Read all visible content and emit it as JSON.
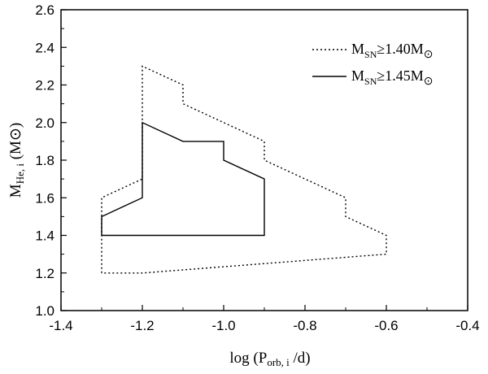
{
  "chart_data": {
    "type": "line",
    "xlabel": {
      "prefix": "log (P",
      "sub": "orb, i",
      "suffix": " /d)"
    },
    "ylabel": {
      "prefix": "M",
      "sub": "He, i",
      "suffix": " (M",
      "sun": "⊙",
      "close": ")"
    },
    "xlim": [
      -1.4,
      -0.4
    ],
    "ylim": [
      1.0,
      2.6
    ],
    "xticks": [
      -1.4,
      -1.2,
      -1.0,
      -0.8,
      -0.6,
      -0.4
    ],
    "xtick_labels": [
      "-1.4",
      "-1.2",
      "-1.0",
      "-0.8",
      "-0.6",
      "-0.4"
    ],
    "yticks": [
      1.0,
      1.2,
      1.4,
      1.6,
      1.8,
      2.0,
      2.2,
      2.4,
      2.6
    ],
    "ytick_labels": [
      "1.0",
      "1.2",
      "1.4",
      "1.6",
      "1.8",
      "2.0",
      "2.2",
      "2.4",
      "2.6"
    ],
    "grid": false,
    "legend_position": "top-right",
    "series": [
      {
        "name": "M_SN≥1.40M⊙",
        "legend": {
          "prefix": "M",
          "sub": "SN",
          "mid": "≥1.40M",
          "sun": "⊙"
        },
        "style": "dotted",
        "color": "#000000",
        "x": [
          -1.3,
          -1.3,
          -1.2,
          -1.2,
          -1.1,
          -1.1,
          -0.9,
          -0.9,
          -0.7,
          -0.7,
          -0.6,
          -0.6,
          -1.2,
          -1.3
        ],
        "y": [
          1.2,
          1.6,
          1.7,
          2.3,
          2.2,
          2.1,
          1.9,
          1.8,
          1.6,
          1.5,
          1.4,
          1.3,
          1.2,
          1.2
        ]
      },
      {
        "name": "M_SN≥1.45M⊙",
        "legend": {
          "prefix": "M",
          "sub": "SN",
          "mid": "≥1.45M",
          "sun": "⊙"
        },
        "style": "solid",
        "color": "#000000",
        "x": [
          -1.3,
          -1.3,
          -1.2,
          -1.2,
          -1.1,
          -1.0,
          -1.0,
          -0.9,
          -0.9,
          -1.3
        ],
        "y": [
          1.4,
          1.5,
          1.6,
          2.0,
          1.9,
          1.9,
          1.8,
          1.7,
          1.4,
          1.4
        ]
      }
    ]
  }
}
